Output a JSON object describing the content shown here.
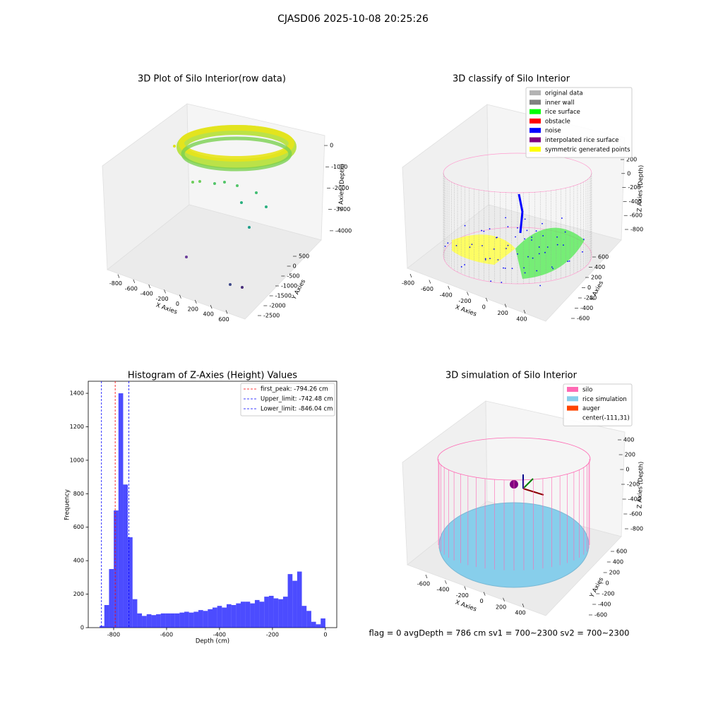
{
  "suptitle": "CJASD06 2025-10-08 20:25:26",
  "footer": "flag = 0     avgDepth = 786 cm  sv1 = 700~2300  sv2 = 700~2300",
  "chart_data": [
    {
      "type": "scatter3d",
      "title": "3D Plot of Silo Interior(row data)",
      "xlabel": "X Axies",
      "ylabel": "Y Axies",
      "zlabel": "Z Axies (Depth)",
      "xlim": [
        -900,
        700
      ],
      "ylim": [
        -2700,
        700
      ],
      "zlim": [
        -4500,
        300
      ],
      "xticks": [
        -800,
        -600,
        -400,
        -200,
        0,
        200,
        400,
        600
      ],
      "yticks": [
        -2500,
        -2000,
        -1500,
        -1000,
        -500,
        0,
        500
      ],
      "zticks": [
        -4000,
        -3000,
        -2000,
        -1000,
        0
      ]
    },
    {
      "type": "scatter3d",
      "title": "3D classify of Silo Interior",
      "xlabel": "X Axies",
      "ylabel": "Y Axies",
      "zlabel": "Z Axies (Depth)",
      "xlim": [
        -900,
        500
      ],
      "ylim": [
        -700,
        700
      ],
      "zlim": [
        -900,
        300
      ],
      "xticks": [
        -800,
        -600,
        -400,
        -200,
        0,
        200,
        400
      ],
      "yticks": [
        -600,
        -400,
        -200,
        0,
        200,
        400,
        600
      ],
      "zticks": [
        -800,
        -600,
        -400,
        -200,
        0,
        200
      ],
      "legend": [
        {
          "name": "original data",
          "color": "#b3b3b3"
        },
        {
          "name": "inner wall",
          "color": "#808080"
        },
        {
          "name": "rice surface",
          "color": "#00ff00"
        },
        {
          "name": "obstacle",
          "color": "#ff0000"
        },
        {
          "name": "noise",
          "color": "#0000ff"
        },
        {
          "name": "interpolated rice surface",
          "color": "#800080"
        },
        {
          "name": "symmetric generated points",
          "color": "#ffff00"
        }
      ]
    },
    {
      "type": "histogram",
      "title": "Histogram of Z-Axies (Height) Values",
      "xlabel": "Depth (cm)",
      "ylabel": "Frequency",
      "color": "#0000ff",
      "legend_position": "upper right",
      "xlim": [
        -896,
        43
      ],
      "ylim": [
        0,
        1472
      ],
      "xticks": [
        -800,
        -600,
        -400,
        -200,
        0
      ],
      "yticks": [
        0,
        200,
        400,
        600,
        800,
        1000,
        1200,
        1400
      ],
      "bins": [
        -853.0,
        -835.2,
        -817.5,
        -799.7,
        -781.9,
        -764.1,
        -746.4,
        -728.6,
        -710.8,
        -693.1,
        -675.3,
        -657.5,
        -639.8,
        -622.0,
        -604.2,
        -586.4,
        -568.7,
        -550.9,
        -533.1,
        -515.4,
        -497.6,
        -479.8,
        -462.0,
        -444.3,
        -426.5,
        -408.7,
        -391.0,
        -373.2,
        -355.4,
        -337.6,
        -319.9,
        -302.1,
        -284.3,
        -266.6,
        -248.8,
        -231.0,
        -213.3,
        -195.5,
        -177.7,
        -159.9,
        -142.2,
        -124.4,
        -106.6,
        -88.9,
        -71.1,
        -53.3,
        -35.5,
        -17.8,
        0
      ],
      "values": [
        10,
        135,
        350,
        700,
        1400,
        855,
        540,
        170,
        85,
        70,
        80,
        75,
        80,
        85,
        85,
        85,
        85,
        90,
        95,
        90,
        95,
        105,
        100,
        110,
        120,
        130,
        120,
        140,
        135,
        145,
        155,
        155,
        145,
        165,
        155,
        185,
        190,
        175,
        170,
        185,
        320,
        280,
        335,
        130,
        100,
        35,
        20,
        55
      ],
      "lines": [
        {
          "name": "first_peak: -794.26 cm",
          "value": -794.26,
          "color": "#ff0000"
        },
        {
          "name": "Upper_limit: -742.48 cm",
          "value": -742.48,
          "color": "#0000ff"
        },
        {
          "name": "Lower_limit: -846.04 cm",
          "value": -846.04,
          "color": "#0000ff"
        }
      ]
    },
    {
      "type": "scatter3d",
      "title": "3D simulation of Silo Interior",
      "xlabel": "X Axies",
      "ylabel": "Y Axies",
      "zlabel": "Z Axies (Depth)",
      "xlim": [
        -700,
        500
      ],
      "ylim": [
        -700,
        700
      ],
      "zlim": [
        -900,
        500
      ],
      "xticks": [
        -600,
        -400,
        -200,
        0,
        200,
        400
      ],
      "yticks": [
        -600,
        -400,
        -200,
        0,
        200,
        400,
        600
      ],
      "zticks": [
        -800,
        -600,
        -400,
        -200,
        0,
        200,
        400
      ],
      "legend": [
        {
          "name": "silo",
          "color": "#ff69b4"
        },
        {
          "name": "rice simulation",
          "color": "#87ceeb"
        },
        {
          "name": "auger",
          "color": "#ff4500"
        },
        {
          "name": "center(-111,31)",
          "color": "#ffffff"
        }
      ]
    }
  ]
}
